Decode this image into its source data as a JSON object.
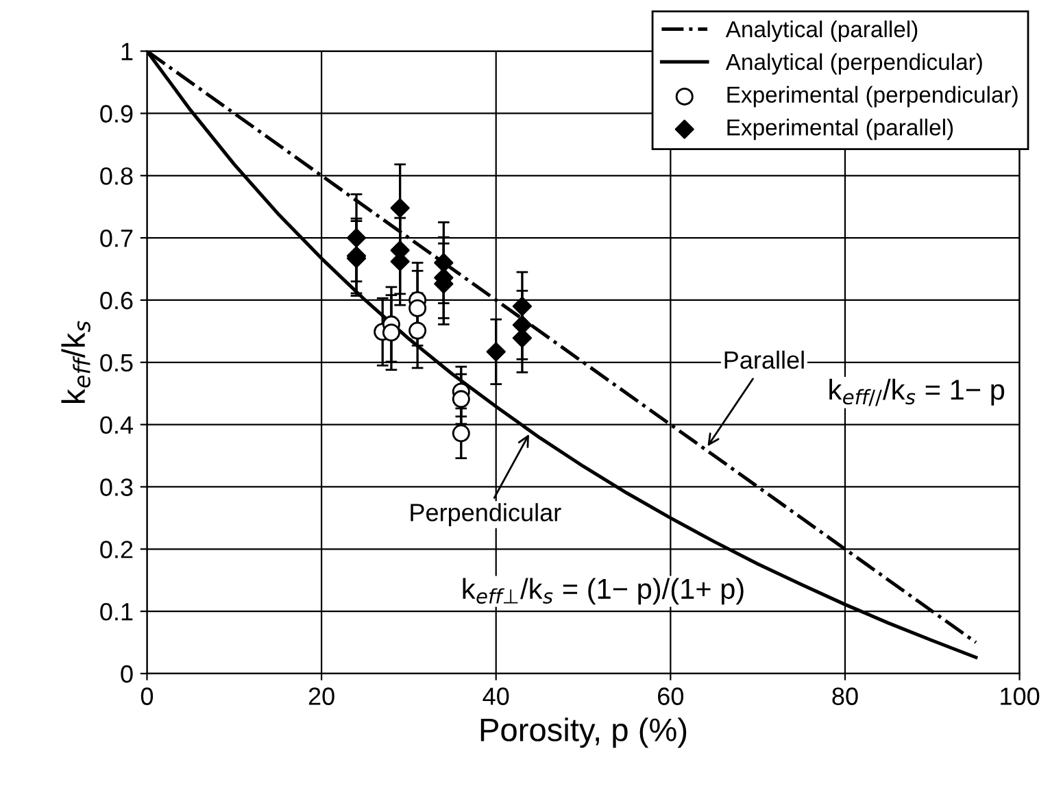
{
  "chart_data": {
    "type": "line",
    "xlabel": "Porosity, p (%)",
    "ylabel": "k$_{eff}$/k$_{s}$",
    "xlim": [
      0,
      100
    ],
    "xticks": [
      0,
      20,
      40,
      60,
      80,
      100
    ],
    "ylim": [
      0,
      1
    ],
    "yticks": [
      0,
      0.1,
      0.2,
      0.3,
      0.4,
      0.5,
      0.6,
      0.7,
      0.8,
      0.9,
      1
    ],
    "grid": true,
    "legend": "top right",
    "series": [
      {
        "name": "Analytical (parallel)",
        "color": "#000000",
        "line_style": "dashdot",
        "marker": "none",
        "x": [
          0,
          95
        ],
        "values": [
          1,
          0.05
        ]
      },
      {
        "name": "Analytical (perpendicular)",
        "color": "#000000",
        "line_style": "solid",
        "marker": "none",
        "x": [
          0,
          5,
          10,
          15,
          20,
          25,
          30,
          35,
          40,
          45,
          50,
          55,
          60,
          65,
          70,
          75,
          80,
          85,
          90,
          95
        ],
        "values": [
          1,
          0.905,
          0.818,
          0.739,
          0.667,
          0.6,
          0.538,
          0.481,
          0.429,
          0.379,
          0.333,
          0.29,
          0.25,
          0.212,
          0.176,
          0.143,
          0.111,
          0.081,
          0.053,
          0.026
        ]
      },
      {
        "name": "Experimental (perpendicular)",
        "type": "scatter",
        "color": "#000000",
        "marker": "circle",
        "x": [
          27,
          28,
          28,
          31,
          31,
          31,
          36,
          36,
          36
        ],
        "values": [
          0.549,
          0.561,
          0.548,
          0.6,
          0.587,
          0.551,
          0.453,
          0.441,
          0.386
        ],
        "errors": [
          0.054,
          0.06,
          0.06,
          0.06,
          0.06,
          0.06,
          0.04,
          0.04,
          0.04
        ]
      },
      {
        "name": "Experimental (parallel)",
        "type": "scatter",
        "color": "#000000",
        "marker": "diamond",
        "x": [
          24,
          24,
          24,
          29,
          29,
          29,
          34,
          34,
          34,
          40,
          43,
          43,
          43
        ],
        "values": [
          0.7,
          0.671,
          0.667,
          0.748,
          0.68,
          0.662,
          0.66,
          0.636,
          0.626,
          0.517,
          0.59,
          0.56,
          0.539
        ],
        "errors": [
          0.07,
          0.06,
          0.06,
          0.07,
          0.07,
          0.07,
          0.065,
          0.065,
          0.065,
          0.052,
          0.055,
          0.055,
          0.055
        ]
      }
    ],
    "annotations": [
      {
        "text": "Parallel",
        "x": 64,
        "y": 0.36
      },
      {
        "text": "Perpendicular",
        "x": 44,
        "y": 0.39
      },
      "k$_{eff//}$/k$_{s}$ = 1− p",
      "k$_{eff⊥}$/k$_{s}$ = (1− p)/(1+ p)"
    ]
  }
}
